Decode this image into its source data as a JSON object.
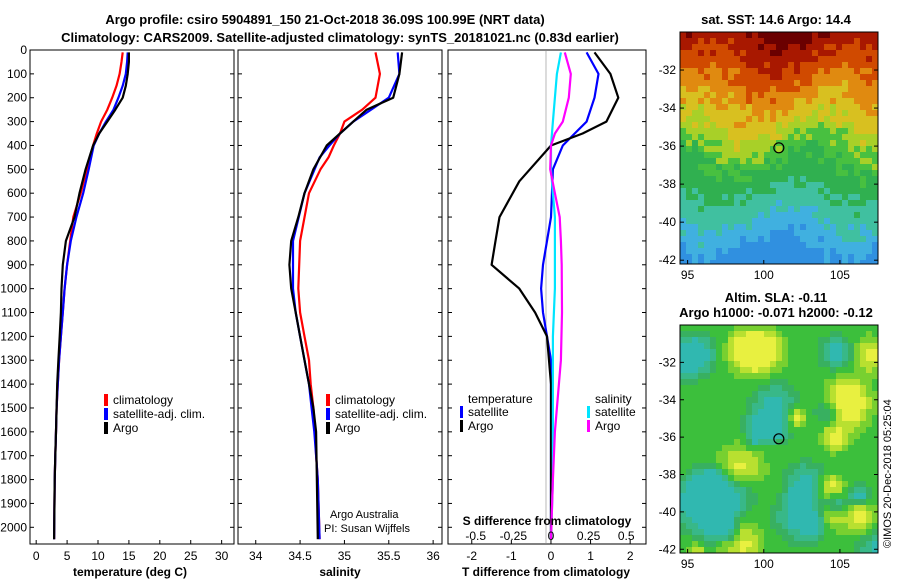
{
  "header": {
    "line1": "Argo profile: csiro 5904891_150 21-Oct-2018 36.09S 100.99E (NRT data)",
    "line2": "Climatology: CARS2009. Satellite-adjusted climatology: synTS_20181021.nc (0.83d earlier)"
  },
  "colors": {
    "climatology": "#ff0000",
    "satellite": "#0000ff",
    "argo": "#000000",
    "satellite_salinity": "#00e5ff",
    "argo_salinity": "#ff00ff"
  },
  "chart_data": [
    {
      "type": "line",
      "id": "temperature",
      "xlabel": "temperature (deg C)",
      "ylabel": "depth",
      "xlim": [
        -1,
        32
      ],
      "ylim": [
        2070,
        0
      ],
      "xticks": [
        "0",
        "5",
        "10",
        "15",
        "20",
        "25",
        "30"
      ],
      "yticks": [
        "0",
        "100",
        "200",
        "300",
        "400",
        "500",
        "600",
        "700",
        "800",
        "900",
        "1000",
        "1100",
        "1200",
        "1300",
        "1400",
        "1500",
        "1600",
        "1700",
        "1800",
        "1900",
        "2000"
      ],
      "legend": [
        "climatology",
        "satellite-adj. clim.",
        "Argo"
      ],
      "series": [
        {
          "name": "climatology",
          "color": "#ff0000",
          "x": [
            14.0,
            13.8,
            13.5,
            13.0,
            12.3,
            11.5,
            10.5,
            9.8,
            9.2,
            8.2,
            7.2,
            6.0,
            5.5,
            5.0,
            4.6,
            4.3,
            4.0,
            3.7,
            3.5,
            3.3,
            3.2,
            3.1,
            3.0,
            2.9
          ],
          "y": [
            10,
            50,
            100,
            150,
            200,
            250,
            300,
            350,
            400,
            500,
            600,
            700,
            800,
            900,
            1000,
            1100,
            1200,
            1300,
            1400,
            1500,
            1600,
            1700,
            1800,
            2050
          ]
        },
        {
          "name": "satellite-adj. clim.",
          "color": "#0000ff",
          "x": [
            14.8,
            14.7,
            14.5,
            14.0,
            13.3,
            12.5,
            11.3,
            10.2,
            9.3,
            8.5,
            7.6,
            6.5,
            5.6,
            5.0,
            4.6,
            4.3,
            4.0,
            3.7,
            3.5,
            3.3,
            3.2,
            3.1,
            3.0,
            2.9
          ],
          "y": [
            10,
            50,
            100,
            150,
            200,
            250,
            300,
            350,
            400,
            500,
            600,
            700,
            800,
            900,
            1000,
            1100,
            1200,
            1300,
            1400,
            1500,
            1600,
            1700,
            1800,
            2050
          ]
        },
        {
          "name": "Argo",
          "color": "#000000",
          "x": [
            15.0,
            15.0,
            14.8,
            14.5,
            14.0,
            12.8,
            11.5,
            10.2,
            9.2,
            8.0,
            7.0,
            6.2,
            4.8,
            4.3,
            4.1,
            4.0,
            3.8,
            3.6,
            3.4,
            3.3,
            3.2,
            3.1,
            3.0,
            2.9
          ],
          "y": [
            10,
            50,
            100,
            150,
            200,
            250,
            300,
            350,
            400,
            500,
            600,
            700,
            800,
            900,
            1000,
            1100,
            1200,
            1300,
            1400,
            1500,
            1600,
            1700,
            1800,
            2050
          ]
        }
      ]
    },
    {
      "type": "line",
      "id": "salinity",
      "xlabel": "salinity",
      "xlim": [
        33.8,
        36.1
      ],
      "ylim": [
        2070,
        0
      ],
      "xticks": [
        "34",
        "34.5",
        "35",
        "35.5",
        "36"
      ],
      "legend": [
        "climatology",
        "satellite-adj. clim.",
        "Argo"
      ],
      "annotations": [
        "Argo Australia",
        "PI: Susan Wijffels"
      ],
      "series": [
        {
          "name": "climatology",
          "color": "#ff0000",
          "x": [
            35.35,
            35.4,
            35.35,
            35.2,
            35.0,
            34.95,
            34.88,
            34.82,
            34.73,
            34.6,
            34.5,
            34.48,
            34.5,
            34.55,
            34.6,
            34.62,
            34.65,
            34.67,
            34.68,
            34.7,
            34.72
          ],
          "y": [
            10,
            100,
            200,
            250,
            300,
            350,
            400,
            450,
            500,
            600,
            800,
            1000,
            1100,
            1200,
            1300,
            1400,
            1500,
            1600,
            1700,
            1800,
            2050
          ]
        },
        {
          "name": "satellite-adj. clim.",
          "color": "#0000ff",
          "x": [
            35.6,
            35.62,
            35.5,
            35.3,
            35.1,
            34.95,
            34.83,
            34.72,
            34.55,
            34.42,
            34.42,
            34.45,
            34.5,
            34.55,
            34.6,
            34.63,
            34.66,
            34.68,
            34.7,
            34.72
          ],
          "y": [
            10,
            100,
            200,
            250,
            300,
            350,
            400,
            450,
            600,
            800,
            1000,
            1100,
            1200,
            1300,
            1400,
            1500,
            1600,
            1700,
            1800,
            2050
          ]
        },
        {
          "name": "Argo",
          "color": "#000000",
          "x": [
            35.65,
            35.62,
            35.55,
            35.25,
            35.1,
            34.95,
            34.8,
            34.65,
            34.55,
            34.48,
            34.4,
            34.38,
            34.4,
            34.45,
            34.5,
            34.55,
            34.6,
            34.65,
            34.68,
            34.7
          ],
          "y": [
            10,
            100,
            200,
            250,
            300,
            350,
            400,
            500,
            600,
            700,
            800,
            900,
            1000,
            1100,
            1200,
            1300,
            1400,
            1500,
            1600,
            2050
          ]
        }
      ]
    },
    {
      "type": "line",
      "id": "difference",
      "xlabel": "T difference from climatology",
      "xlabel_top": "S difference from climatology",
      "xlim": [
        -2.6,
        2.4
      ],
      "ylim": [
        2070,
        0
      ],
      "xticks": [
        "-2",
        "-1",
        "0",
        "1",
        "2"
      ],
      "xticks_salinity": [
        "-0.5",
        "-0.25",
        "0",
        "0.25",
        "0.5"
      ],
      "legend_temperature": {
        "title": "temperature",
        "items": [
          "satellite",
          "Argo"
        ]
      },
      "legend_salinity": {
        "title": "salinity",
        "items": [
          "satellite",
          "Argo"
        ]
      },
      "series": [
        {
          "name": "T satellite",
          "color": "#0000ff",
          "x": [
            0.9,
            1.2,
            1.1,
            0.9,
            0.6,
            0.3,
            0.05,
            0.0,
            -0.1,
            -0.2,
            -0.25,
            -0.2,
            -0.1,
            0.0,
            0.0,
            0.0,
            0.0,
            0.0,
            0.0
          ],
          "y": [
            10,
            100,
            200,
            300,
            350,
            400,
            500,
            700,
            800,
            900,
            1000,
            1100,
            1200,
            1300,
            1400,
            1500,
            1700,
            1900,
            2050
          ]
        },
        {
          "name": "T Argo",
          "color": "#000000",
          "x": [
            1.1,
            1.5,
            1.7,
            1.4,
            0.8,
            0.0,
            -0.8,
            -1.3,
            -1.4,
            -1.5,
            -0.8,
            -0.4,
            -0.1,
            0.0,
            0.0,
            0.0,
            0.0
          ],
          "y": [
            10,
            100,
            200,
            300,
            350,
            400,
            550,
            700,
            800,
            900,
            1000,
            1100,
            1200,
            1400,
            1600,
            1800,
            2050
          ]
        },
        {
          "name": "S satellite",
          "color": "#00e5ff",
          "x": [
            0.25,
            0.15,
            0.1,
            0.05,
            0.0,
            0.0,
            0.05,
            0.1,
            0.1,
            0.1,
            0.1,
            0.05,
            0.05,
            0.05,
            0.0
          ],
          "y": [
            10,
            100,
            200,
            300,
            400,
            500,
            600,
            700,
            800,
            900,
            1000,
            1200,
            1400,
            1800,
            2050
          ]
        },
        {
          "name": "S Argo",
          "color": "#ff00ff",
          "x": [
            0.35,
            0.5,
            0.45,
            0.3,
            0.1,
            0.0,
            -0.02,
            0.1,
            0.22,
            0.25,
            0.27,
            0.28,
            0.25,
            0.2,
            0.1,
            0.05,
            0.0
          ],
          "y": [
            10,
            100,
            200,
            300,
            350,
            400,
            500,
            600,
            700,
            800,
            900,
            1100,
            1300,
            1400,
            1600,
            1800,
            2050
          ]
        }
      ]
    }
  ],
  "map_sst": {
    "title": "sat. SST: 14.6 Argo: 14.4",
    "yticks": [
      "-32",
      "-34",
      "-36",
      "-38",
      "-40",
      "-42"
    ],
    "xticks": [
      "95",
      "100",
      "105"
    ],
    "marker_lon": 100.99,
    "marker_lat": -36.09,
    "lon_range": [
      94.5,
      107.5
    ],
    "lat_range": [
      -42.2,
      -30.0
    ]
  },
  "map_sla": {
    "title1": "Altim. SLA: -0.11",
    "title2": "Argo h1000: -0.071 h2000: -0.12",
    "yticks": [
      "-32",
      "-34",
      "-36",
      "-38",
      "-40",
      "-42"
    ],
    "xticks": [
      "95",
      "100",
      "105"
    ],
    "marker_lon": 100.99,
    "marker_lat": -36.09,
    "lon_range": [
      94.5,
      107.5
    ],
    "lat_range": [
      -42.2,
      -30.0
    ]
  },
  "footer": {
    "stamp": "©IMOS 20-Dec-2018 05:25:04"
  }
}
